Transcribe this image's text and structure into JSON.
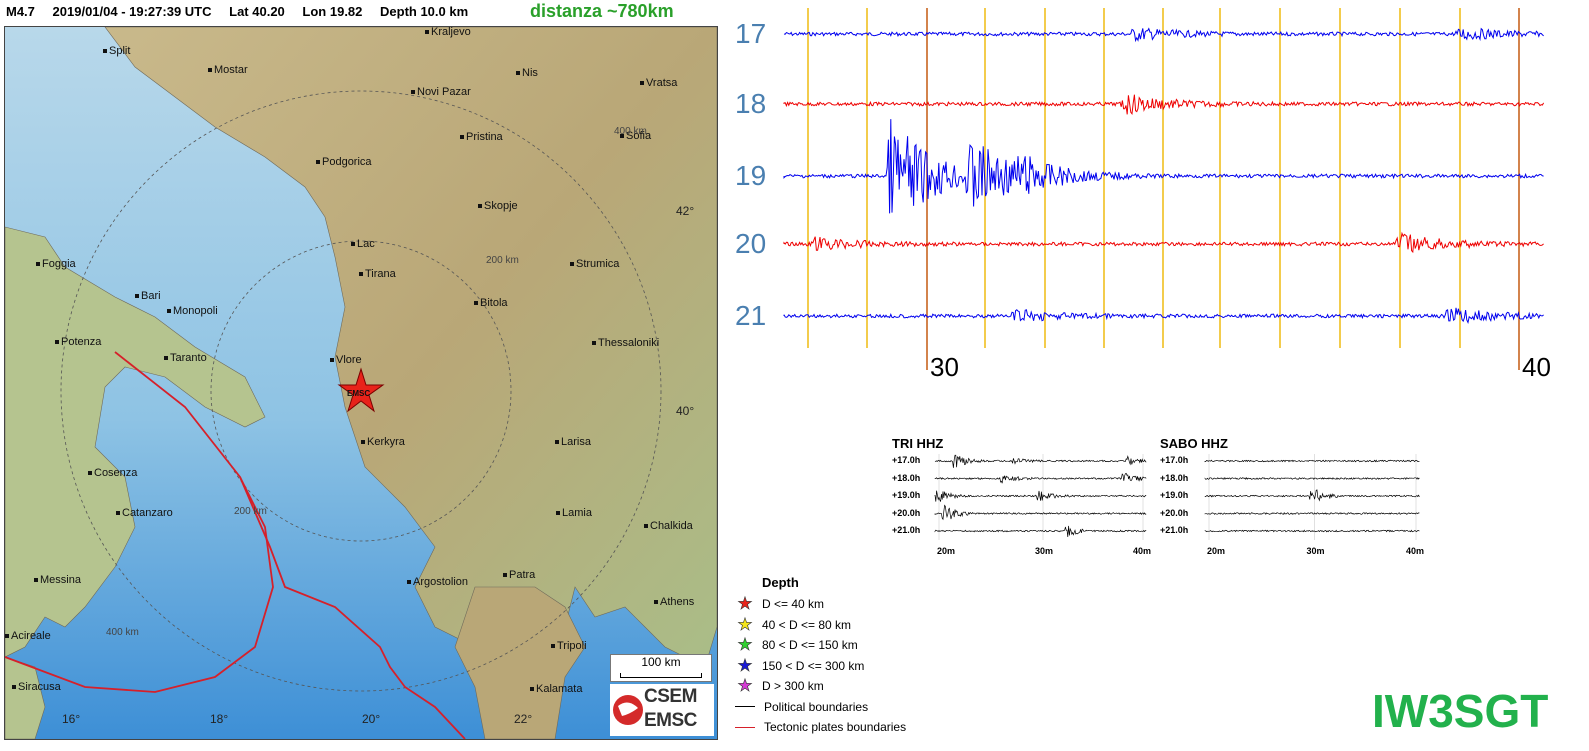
{
  "header": {
    "magnitude": "M4.7",
    "datetime": "2019/01/04 - 19:27:39 UTC",
    "lat": "Lat 40.20",
    "lon": "Lon 19.82",
    "depth": "Depth 10.0 km",
    "distance": "distanza ~780km"
  },
  "map": {
    "cities": [
      "Kraljevo",
      "Split",
      "Mostar",
      "Novi Pazar",
      "Nis",
      "Vratsa",
      "Sofia",
      "Pristina",
      "Podgorica",
      "Skopje",
      "Lac",
      "Tirana",
      "Strumica",
      "Foggia",
      "Bari",
      "Monopoli",
      "Bitola",
      "Potenza",
      "Taranto",
      "Thessaloniki",
      "Vlore",
      "Kerkyra",
      "Larisa",
      "Cosenza",
      "Catanzaro",
      "Lamia",
      "Chalkida",
      "Messina",
      "Argostolion",
      "Patra",
      "Athens",
      "Acireale",
      "Tripoli",
      "Siracusa",
      "Kalamata"
    ],
    "epicenter_label": "EMSC",
    "lat_labels": [
      "42°",
      "40°"
    ],
    "lon_labels": [
      "16°",
      "18°",
      "20°",
      "22°"
    ],
    "ring_labels": [
      "400 km",
      "200 km",
      "200 km",
      "400 km"
    ],
    "scale_label": "100 km",
    "logo_top": "CSEM",
    "logo_bottom": "EMSC"
  },
  "seismogram": {
    "hour_labels": [
      "17",
      "18",
      "19",
      "20",
      "21"
    ],
    "minute_labels": [
      "30",
      "40"
    ],
    "trace_colors": [
      "#0000ee",
      "#ee0000",
      "#0000ee",
      "#ee0000",
      "#0000ee"
    ],
    "gridline_color": "#f0c020",
    "marker_color": "#c86420"
  },
  "stations": [
    {
      "name": "TRI HHZ",
      "rows": [
        "+17.0h",
        "+18.0h",
        "+19.0h",
        "+20.0h",
        "+21.0h"
      ],
      "ticks": [
        "20m",
        "30m",
        "40m"
      ]
    },
    {
      "name": "SABO HHZ",
      "rows": [
        "+17.0h",
        "+18.0h",
        "+19.0h",
        "+20.0h",
        "+21.0h"
      ],
      "ticks": [
        "20m",
        "30m",
        "40m"
      ]
    }
  ],
  "legend": {
    "title": "Depth",
    "items": [
      {
        "label": "D <= 40 km",
        "color": "#e8231a"
      },
      {
        "label": "40 < D <= 80 km",
        "color": "#f5e61b"
      },
      {
        "label": "80 < D <= 150 km",
        "color": "#2fd12f"
      },
      {
        "label": "150 < D <= 300 km",
        "color": "#1a1ad6"
      },
      {
        "label": "D > 300 km",
        "color": "#d63ad6"
      }
    ],
    "political": "Political boundaries",
    "tectonic": "Tectonic plates boundaries"
  },
  "callsign": "IW3SGT"
}
